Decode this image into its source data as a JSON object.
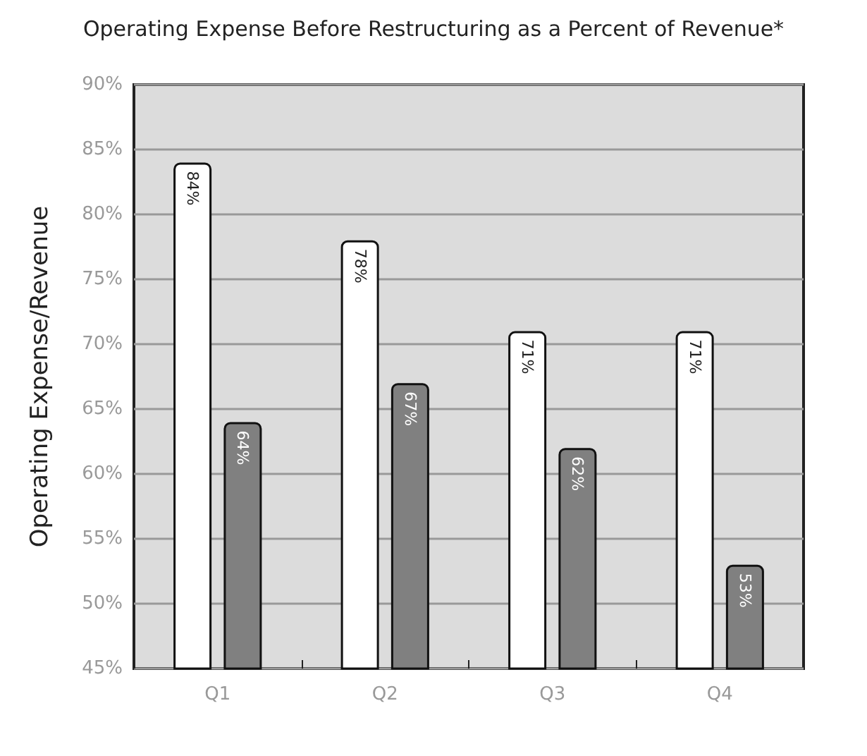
{
  "chart_data": {
    "type": "bar",
    "title": "Operating Expense Before Restructuring as a Percent of Revenue*",
    "ylabel": "Operating Expense/Revenue",
    "categories": [
      "Q1",
      "Q2",
      "Q3",
      "Q4"
    ],
    "series": [
      {
        "color": "#ffffff",
        "values": [
          84,
          78,
          71,
          71
        ],
        "value_labels": [
          "84%",
          "78%",
          "71%",
          "71%"
        ]
      },
      {
        "color": "#808080",
        "values": [
          64,
          67,
          62,
          53
        ],
        "value_labels": [
          "64%",
          "67%",
          "62%",
          "53%"
        ]
      }
    ],
    "ylim": [
      45,
      90
    ],
    "yticks": [
      {
        "value": 45,
        "label": "45%"
      },
      {
        "value": 50,
        "label": "50%"
      },
      {
        "value": 55,
        "label": "55%"
      },
      {
        "value": 60,
        "label": "60%"
      },
      {
        "value": 65,
        "label": "65%"
      },
      {
        "value": 70,
        "label": "70%"
      },
      {
        "value": 75,
        "label": "75%"
      },
      {
        "value": 80,
        "label": "80%"
      },
      {
        "value": 85,
        "label": "85%"
      },
      {
        "value": 90,
        "label": "90%"
      }
    ],
    "grid": "y"
  }
}
